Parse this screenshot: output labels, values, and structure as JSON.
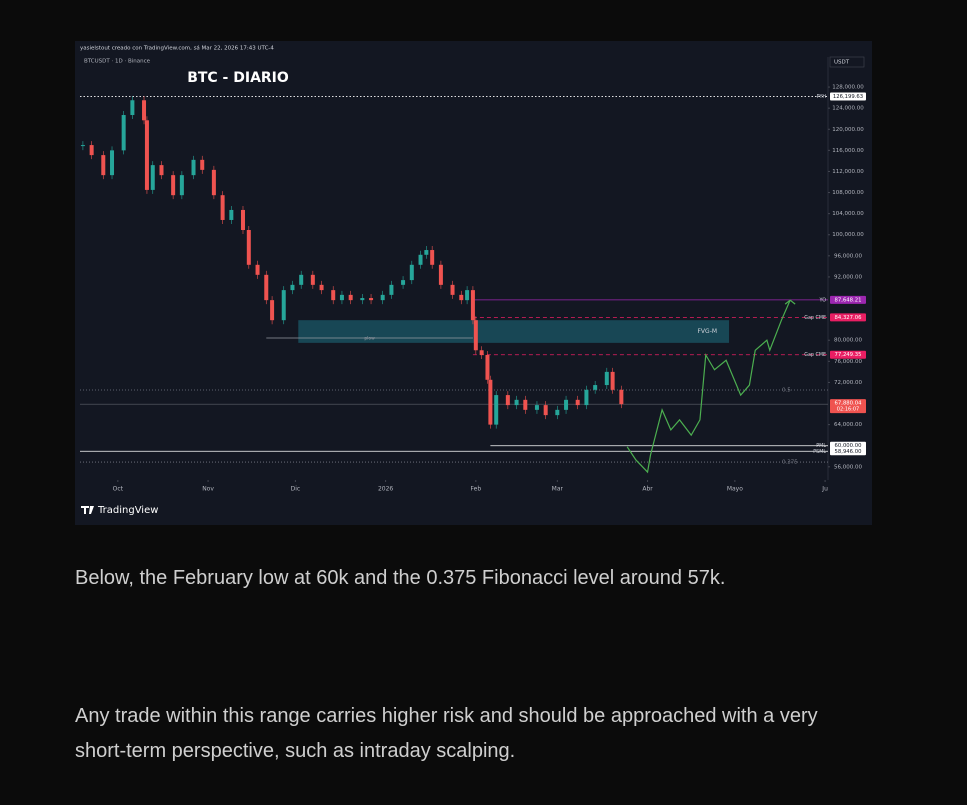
{
  "chart_data": {
    "type": "candlestick",
    "watermark": "yasielstout creado con TradingView.com, sá Mar 22, 2026 17:43 UTC-4",
    "symbol": "BTCUSDT · 1D · Binance",
    "title": "BTC - DIARIO",
    "currency": "USDT",
    "brand": "TradingView",
    "xlim": [
      -13,
      244
    ],
    "xticks": [
      {
        "value": 0,
        "label": "Oct"
      },
      {
        "value": 31,
        "label": "Nov"
      },
      {
        "value": 61,
        "label": "Dic"
      },
      {
        "value": 92,
        "label": "2026"
      },
      {
        "value": 123,
        "label": "Feb"
      },
      {
        "value": 151,
        "label": "Mar"
      },
      {
        "value": 182,
        "label": "Abr"
      },
      {
        "value": 212,
        "label": "Mayo"
      },
      {
        "value": 243,
        "label": "Ju"
      }
    ],
    "ylim": [
      53500,
      133700
    ],
    "yticks": [
      {
        "value": 128000,
        "label": "128,000.00"
      },
      {
        "value": 124000,
        "label": "124,000.00"
      },
      {
        "value": 120000,
        "label": "120,000.00"
      },
      {
        "value": 116000,
        "label": "116,000.00"
      },
      {
        "value": 112000,
        "label": "112,000.00"
      },
      {
        "value": 108000,
        "label": "108,000.00"
      },
      {
        "value": 104000,
        "label": "104,000.00"
      },
      {
        "value": 100000,
        "label": "100,000.00"
      },
      {
        "value": 96000,
        "label": "96,000.00"
      },
      {
        "value": 92000,
        "label": "92,000.00"
      },
      {
        "value": 80000,
        "label": "80,000.00"
      },
      {
        "value": 76000,
        "label": "76,000.00"
      },
      {
        "value": 72000,
        "label": "72,000.00"
      },
      {
        "value": 64000,
        "label": "64,000.00"
      },
      {
        "value": 56000,
        "label": "56,000.00"
      }
    ],
    "series": [
      {
        "type": "candlestick",
        "color": "#26a69a",
        "down_color": "#ef5350",
        "x": [
          -12,
          -9,
          -5,
          -2,
          2,
          5,
          9,
          10,
          12,
          15,
          19,
          22,
          26,
          29,
          33,
          36,
          39,
          43,
          45,
          48,
          51,
          53,
          57,
          60,
          63,
          67,
          70,
          74,
          77,
          80,
          84,
          87,
          91,
          94,
          98,
          101,
          104,
          106,
          108,
          111,
          115,
          118,
          120,
          122,
          123,
          125,
          127,
          128,
          130,
          134,
          137,
          140,
          144,
          147,
          151,
          154,
          158,
          161,
          164,
          168,
          170,
          173
        ],
        "values": [
          117000,
          115100,
          111300,
          116000,
          122700,
          125500,
          121700,
          108500,
          113200,
          111300,
          107500,
          111300,
          114200,
          112300,
          107500,
          102800,
          104700,
          100900,
          94300,
          92400,
          87600,
          83800,
          89500,
          90500,
          92400,
          90500,
          89500,
          87600,
          88600,
          87600,
          88000,
          87600,
          88600,
          90500,
          91400,
          94300,
          96200,
          97100,
          94300,
          90500,
          88600,
          87600,
          89500,
          83800,
          78100,
          77200,
          72500,
          64000,
          69600,
          67700,
          68700,
          66800,
          67700,
          65800,
          66800,
          68700,
          67700,
          70600,
          71500,
          74000,
          70600,
          67880.04
        ]
      },
      {
        "type": "line",
        "color": "#4caf50",
        "x": [
          175,
          178,
          182,
          183,
          187,
          190,
          193,
          197,
          200,
          202,
          205,
          209,
          214,
          217,
          219,
          223,
          224,
          228,
          231
        ],
        "values": [
          59800,
          57300,
          55000,
          58200,
          66800,
          63000,
          64900,
          62000,
          64900,
          77200,
          74400,
          76200,
          69600,
          71500,
          78100,
          80000,
          78100,
          83800,
          87600
        ]
      }
    ],
    "levels": [
      {
        "label": "PYH",
        "value": 126199.63,
        "value_label": "126,199.63",
        "color": "#ffffff",
        "text_color": "#131722",
        "style": "dotted",
        "from": -13
      },
      {
        "label": "YO",
        "value": 87648.21,
        "value_label": "87,648.21",
        "color": "#9c27b0",
        "text_color": "#ffffff",
        "style": "solid",
        "from": 122
      },
      {
        "label": "Gap CME",
        "value": 84327.06,
        "value_label": "84,327.06",
        "color": "#e91e63",
        "text_color": "#ffffff",
        "style": "dashed",
        "from": 122
      },
      {
        "label": "Gap CME",
        "value": 77249.35,
        "value_label": "77,249.35",
        "color": "#e91e63",
        "text_color": "#ffffff",
        "style": "dashed",
        "from": 122
      },
      {
        "label": "PML",
        "value": 60000,
        "value_label": "60,000.00",
        "color": "#ffffff",
        "text_color": "#131722",
        "style": "solid",
        "from": 128
      },
      {
        "label": "PSML",
        "value": 58946,
        "value_label": "58,946.00",
        "color": "#ffffff",
        "text_color": "#131722",
        "style": "solid",
        "from": -13
      }
    ],
    "fib_levels": [
      {
        "label": "0.5",
        "value": 70560
      },
      {
        "label": "0.375",
        "value": 56900
      }
    ],
    "plow": {
      "label": "plow",
      "value": 80420,
      "from": 51,
      "to": 122
    },
    "fvg": {
      "label": "FVG-M",
      "top": 83800,
      "bottom": 79500,
      "from": 62,
      "to": 210,
      "color": "#26c6da"
    },
    "last_price": {
      "value": 67880.04,
      "value_label": "67,880.04",
      "countdown": "02:16:07",
      "color": "#ef5350"
    }
  },
  "article": {
    "paragraphs": [
      "Below, the February low at 60k and the 0.375 Fibonacci level around 57k.",
      "Any trade within this range carries higher risk and should be approached with a very short-term perspective, such as intraday scalping."
    ]
  }
}
